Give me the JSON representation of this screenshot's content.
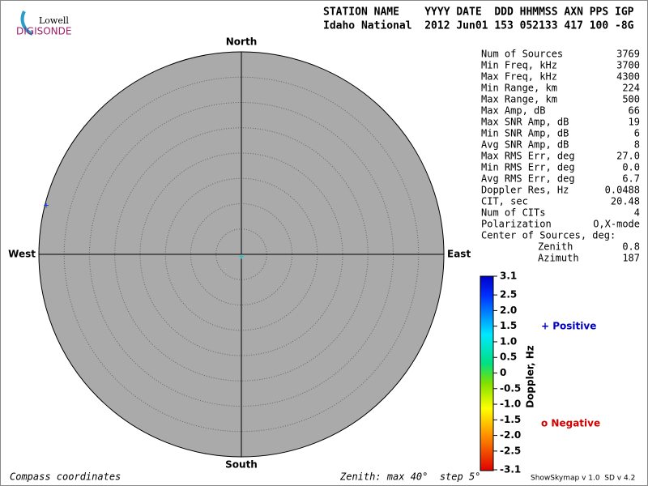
{
  "logo": {
    "top": "Lowell",
    "bottom": "DIGISONDE"
  },
  "header": {
    "line1": "STATION NAME    YYYY DATE  DDD HHMMSS AXN PPS IGP",
    "line2": "Idaho National  2012 Jun01 153 052133 417 100 -8G"
  },
  "compass": {
    "north": "North",
    "south": "South",
    "east": "East",
    "west": "West"
  },
  "stats": {
    "rows": [
      [
        "Num of Sources",
        "3769"
      ],
      [
        "Min Freq, kHz",
        "3700"
      ],
      [
        "Max Freq, kHz",
        "4300"
      ],
      [
        "Min Range, km",
        "224"
      ],
      [
        "Max Range, km",
        "500"
      ],
      [
        "Max Amp, dB",
        "66"
      ],
      [
        "Max SNR Amp, dB",
        "19"
      ],
      [
        "Min SNR Amp, dB",
        "6"
      ],
      [
        "Avg SNR Amp, dB",
        "8"
      ],
      [
        "Max RMS Err, deg",
        "27.0"
      ],
      [
        "Min RMS Err, deg",
        "0.0"
      ],
      [
        "Avg RMS Err, deg",
        "6.7"
      ],
      [
        "Doppler Res, Hz",
        "0.0488"
      ],
      [
        "CIT, sec",
        "20.48"
      ],
      [
        "Num of CITs",
        "4"
      ],
      [
        "Polarization",
        "O,X-mode"
      ]
    ],
    "center_title": "Center of Sources, deg:",
    "center_rows": [
      [
        "Zenith",
        "0.8"
      ],
      [
        "Azimuth",
        "187"
      ]
    ]
  },
  "colorbar": {
    "label": "Doppler, Hz",
    "lim": [
      -3.1,
      3.1
    ],
    "ticks": [
      3.1,
      2.5,
      {
        "value": 2,
        "label": "2.0"
      },
      1.5,
      {
        "value": 1,
        "label": "1.0"
      },
      0.5,
      0,
      -0.5,
      {
        "value": -1,
        "label": "-1.0"
      },
      -1.5,
      {
        "value": -2,
        "label": "-2.0"
      },
      -2.5,
      -3.1
    ]
  },
  "legend": {
    "positive": "+ Positive",
    "negative": "o Negative"
  },
  "footer": {
    "left": "Compass coordinates",
    "middle": "Zenith: max 40°  step 5°",
    "right": "ShowSkymap v 1.0  SD v 4.2"
  }
}
